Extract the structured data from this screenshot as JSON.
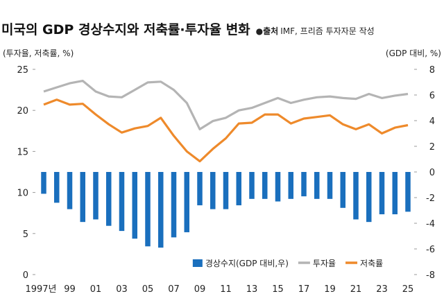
{
  "chart_data": {
    "type": "bar+line",
    "title": "미국의 GDP 경상수지와 저축률·투자율 변화",
    "source_bullet": "●",
    "source_label": "출처",
    "source_text": "IMF, 프리즘 투자자문 작성",
    "left_axis_label": "(투자율, 저축률, %)",
    "right_axis_label": "(GDP 대비, %)",
    "left_ylim": [
      0,
      25
    ],
    "left_ticks": [
      "0",
      "5",
      "10",
      "15",
      "20",
      "25"
    ],
    "right_ylim": [
      -8,
      8
    ],
    "right_ticks": [
      "-8",
      "-6",
      "-4",
      "-2",
      "0",
      "2",
      "4",
      "6",
      "8"
    ],
    "x": [
      1997,
      1998,
      1999,
      2000,
      2001,
      2002,
      2003,
      2004,
      2005,
      2006,
      2007,
      2008,
      2009,
      2010,
      2011,
      2012,
      2013,
      2014,
      2015,
      2016,
      2017,
      2018,
      2019,
      2020,
      2021,
      2022,
      2023,
      2024,
      2025
    ],
    "x_tick_labels": [
      "1997년",
      "99",
      "01",
      "03",
      "05",
      "07",
      "09",
      "11",
      "13",
      "15",
      "17",
      "19",
      "21",
      "23",
      "25"
    ],
    "grid": false,
    "legend_placement": "bottom-center",
    "series": [
      {
        "name": "경상수지(GDP 대비,우)",
        "type": "bar",
        "axis": "right",
        "color": "#1a6fbd",
        "values": [
          -1.7,
          -2.4,
          -2.9,
          -3.9,
          -3.7,
          -4.2,
          -4.6,
          -5.2,
          -5.8,
          -5.9,
          -5.1,
          -4.7,
          -2.6,
          -2.9,
          -2.9,
          -2.6,
          -2.1,
          -2.1,
          -2.3,
          -2.1,
          -1.9,
          -2.1,
          -2.1,
          -2.8,
          -3.7,
          -3.9,
          -3.3,
          -3.3,
          -3.1
        ]
      },
      {
        "name": "투자율",
        "type": "line",
        "axis": "left",
        "color": "#b4b4b4",
        "values": [
          22.3,
          22.8,
          23.3,
          23.6,
          22.3,
          21.7,
          21.6,
          22.5,
          23.4,
          23.5,
          22.5,
          20.9,
          17.7,
          18.7,
          19.1,
          20.0,
          20.3,
          20.9,
          21.5,
          20.9,
          21.3,
          21.6,
          21.7,
          21.5,
          21.4,
          22.0,
          21.5,
          21.8,
          22.0
        ]
      },
      {
        "name": "저축률",
        "type": "line",
        "axis": "left",
        "color": "#ee8a2b",
        "values": [
          20.7,
          21.3,
          20.7,
          20.8,
          19.5,
          18.3,
          17.3,
          17.8,
          18.1,
          19.1,
          16.9,
          15.0,
          13.8,
          15.3,
          16.6,
          18.4,
          18.5,
          19.5,
          19.5,
          18.4,
          19.0,
          19.2,
          19.4,
          18.3,
          17.7,
          18.3,
          17.2,
          17.9,
          18.2
        ]
      }
    ]
  }
}
